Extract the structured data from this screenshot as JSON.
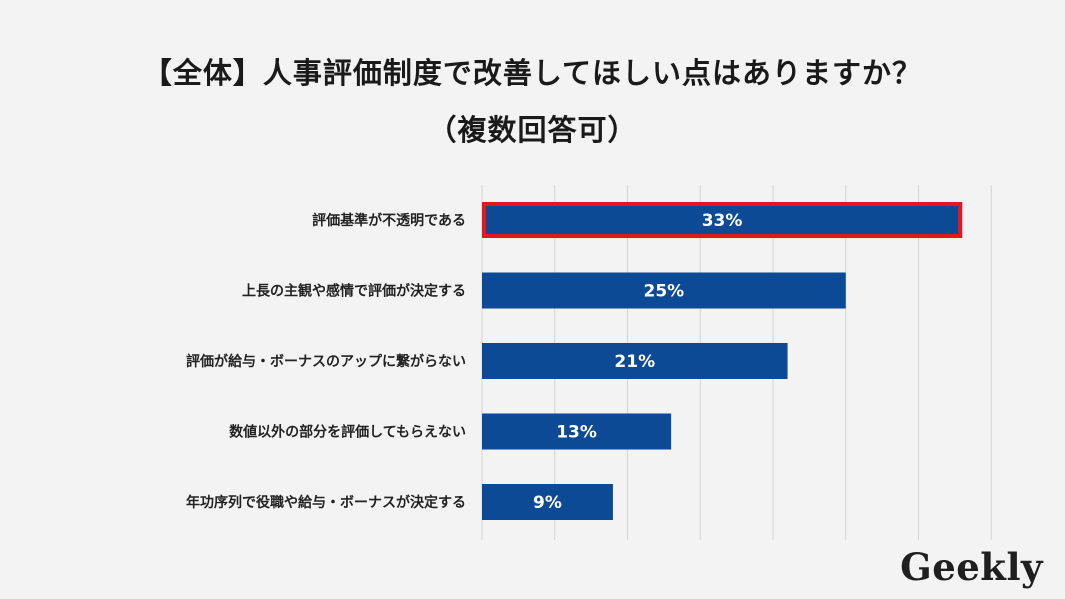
{
  "title_line1": "【全体】人事評価制度で改善してほしい点はありますか？",
  "title_line2": "（複数回答可）",
  "logo": "Geekly",
  "colors": {
    "bar": "#0d4a96",
    "highlight_border": "#e4171f",
    "grid": "#d4d4d4",
    "background": "#f3f3f3",
    "bar_label": "#ffffff"
  },
  "chart_data": {
    "type": "bar",
    "orientation": "horizontal",
    "categories": [
      "評価基準が不透明である",
      "上長の主観や感情で評価が決定する",
      "評価が給与・ボーナスのアップに繋がらない",
      "数値以外の部分を評価してもらえない",
      "年功序列で役職や給与・ボーナスが決定する"
    ],
    "values": [
      33,
      25,
      21,
      13,
      9
    ],
    "data_labels": [
      "33%",
      "25%",
      "21%",
      "13%",
      "9%"
    ],
    "unit": "%",
    "xlim": [
      0,
      35
    ],
    "grid": true,
    "highlighted_category": "評価基準が不透明である",
    "legend": "none"
  }
}
